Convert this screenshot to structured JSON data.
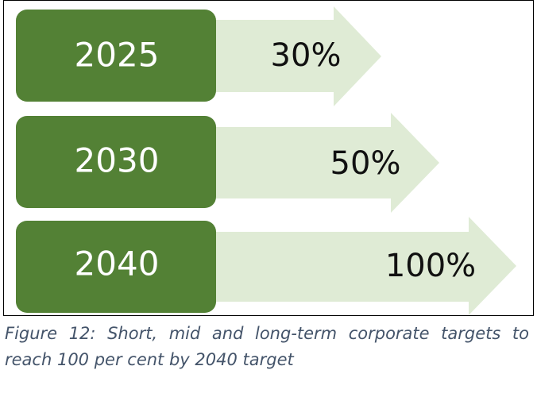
{
  "rows": [
    {
      "year": "2025",
      "target": "30%"
    },
    {
      "year": "2030",
      "target": "50%"
    },
    {
      "year": "2040",
      "target": "100%"
    }
  ],
  "caption": "Figure 12: Short, mid and long-term corporate targets to reach 100 per cent by 2040 target"
}
